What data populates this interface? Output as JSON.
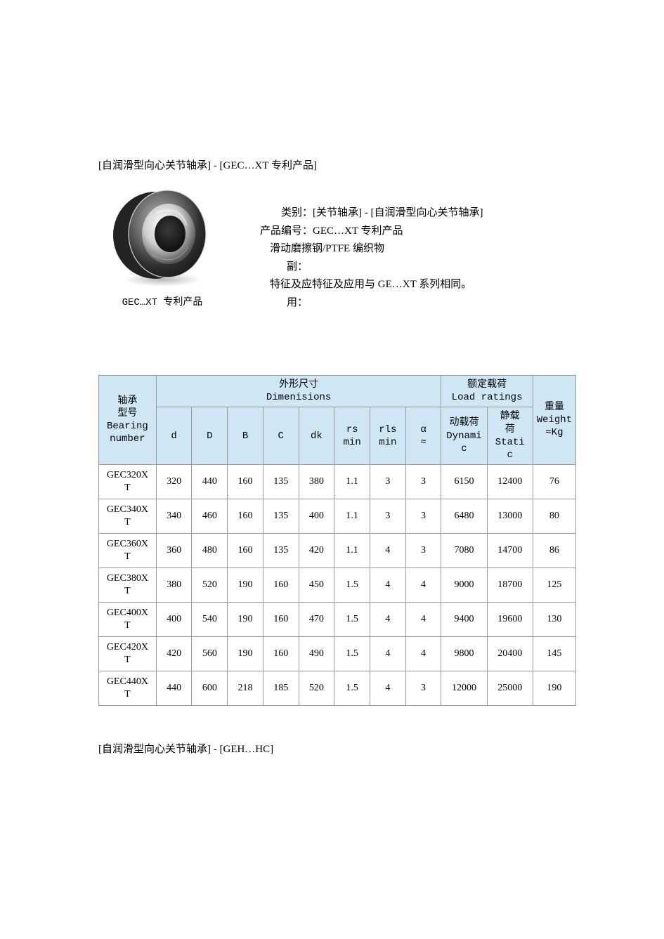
{
  "page": {
    "title": "[自润滑型向心关节轴承] - [GEC…XT 专利产品]",
    "caption": "GEC…XT 专利产品",
    "footer": "[自润滑型向心关节轴承] - [GEH…HC]"
  },
  "info": {
    "row0_label": "类别：",
    "row0_value": "[关节轴承] - [自润滑型向心关节轴承]",
    "row1_label": "产品编号：",
    "row1_value": "GEC…XT 专利产品",
    "row2_label": "滑动磨擦",
    "row2_value": "钢/PTFE 编织物",
    "row3_label": "副：",
    "row4_label": "特征及应",
    "row4_value": "特征及应用与 GE…XT 系列相同。",
    "row5_label": "用："
  },
  "table": {
    "header": {
      "bearing_cn": "轴承",
      "bearing_cn2": "型号",
      "bearing_en": "Bearing",
      "bearing_en2": "number",
      "dims_cn": "外形尺寸",
      "dims_en": "Dimenisions",
      "load_cn": "额定载荷",
      "load_en": "Load ratings",
      "weight_cn": "重量",
      "weight_en": "Weight",
      "weight_unit": "≈Kg",
      "d": "d",
      "D": "D",
      "B": "B",
      "C": "C",
      "dk": "dk",
      "rs": "rs",
      "min1": "min",
      "rls": "rls",
      "min2": "min",
      "alpha": "α",
      "approx": "≈",
      "dyn_cn": "动载荷",
      "dyn_en": "Dynami",
      "dyn_en2": "c",
      "stat_cn": "静载",
      "stat_cn2": "荷",
      "stat_en": "Stati",
      "stat_en2": "c"
    },
    "rows": [
      {
        "no": "GEC320X",
        "no2": "T",
        "d": "320",
        "D": "440",
        "B": "160",
        "C": "135",
        "dk": "380",
        "rs": "1.1",
        "rls": "3",
        "a": "3",
        "dyn": "6150",
        "stat": "12400",
        "w": "76"
      },
      {
        "no": "GEC340X",
        "no2": "T",
        "d": "340",
        "D": "460",
        "B": "160",
        "C": "135",
        "dk": "400",
        "rs": "1.1",
        "rls": "3",
        "a": "3",
        "dyn": "6480",
        "stat": "13000",
        "w": "80"
      },
      {
        "no": "GEC360X",
        "no2": "T",
        "d": "360",
        "D": "480",
        "B": "160",
        "C": "135",
        "dk": "420",
        "rs": "1.1",
        "rls": "4",
        "a": "3",
        "dyn": "7080",
        "stat": "14700",
        "w": "86"
      },
      {
        "no": "GEC380X",
        "no2": "T",
        "d": "380",
        "D": "520",
        "B": "190",
        "C": "160",
        "dk": "450",
        "rs": "1.5",
        "rls": "4",
        "a": "4",
        "dyn": "9000",
        "stat": "18700",
        "w": "125"
      },
      {
        "no": "GEC400X",
        "no2": "T",
        "d": "400",
        "D": "540",
        "B": "190",
        "C": "160",
        "dk": "470",
        "rs": "1.5",
        "rls": "4",
        "a": "4",
        "dyn": "9400",
        "stat": "19600",
        "w": "130"
      },
      {
        "no": "GEC420X",
        "no2": "T",
        "d": "420",
        "D": "560",
        "B": "190",
        "C": "160",
        "dk": "490",
        "rs": "1.5",
        "rls": "4",
        "a": "4",
        "dyn": "9800",
        "stat": "20400",
        "w": "145"
      },
      {
        "no": "GEC440X",
        "no2": "T",
        "d": "440",
        "D": "600",
        "B": "218",
        "C": "185",
        "dk": "520",
        "rs": "1.5",
        "rls": "4",
        "a": "3",
        "dyn": "12000",
        "stat": "25000",
        "w": "190"
      }
    ]
  },
  "colors": {
    "header_bg": "#cfe6f5",
    "border": "#999999",
    "text": "#000000",
    "bg": "#ffffff"
  },
  "image": {
    "type": "spherical-plain-bearing",
    "outer_color_light": "#9b9b9b",
    "outer_color_dark": "#2e2e2e",
    "inner_color_light": "#f5f5f5",
    "inner_color_dark": "#555555",
    "shadow_color": "#c8c8c8"
  }
}
